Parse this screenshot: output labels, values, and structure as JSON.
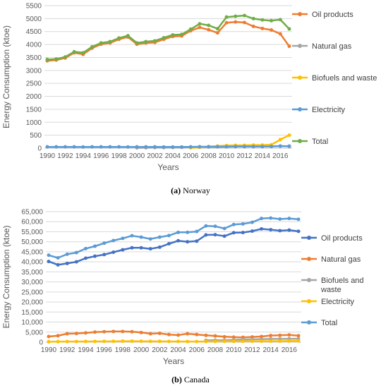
{
  "figure": {
    "caption_a_label": "(a)",
    "caption_a_text": "Norway",
    "caption_b_label": "(b)",
    "caption_b_text": "Canada"
  },
  "chart_data": [
    {
      "type": "line",
      "title": "",
      "xlabel": "Years",
      "ylabel": "Energy Consumption (ktoe)",
      "ylim": [
        0,
        5500
      ],
      "yticks": [
        0,
        500,
        1000,
        1500,
        2000,
        2500,
        3000,
        3500,
        4000,
        4500,
        5000,
        5500
      ],
      "ytick_labels": [
        "0",
        "500",
        "1000",
        "1500",
        "2000",
        "2500",
        "3000",
        "3500",
        "4000",
        "4500",
        "5000",
        "5500"
      ],
      "x": [
        1990,
        1991,
        1992,
        1993,
        1994,
        1995,
        1996,
        1997,
        1998,
        1999,
        2000,
        2001,
        2002,
        2003,
        2004,
        2005,
        2006,
        2007,
        2008,
        2009,
        2010,
        2011,
        2012,
        2013,
        2014,
        2015,
        2016,
        2017
      ],
      "xtick_labels": [
        "1990",
        "1992",
        "1994",
        "1996",
        "1998",
        "2000",
        "2002",
        "2004",
        "2006",
        "2008",
        "2010",
        "2012",
        "2014",
        "2016"
      ],
      "grid": true,
      "legend_position": "right",
      "series": [
        {
          "name": "Oil products",
          "color": "#ED7D31",
          "values": [
            3370,
            3400,
            3480,
            3680,
            3620,
            3860,
            4010,
            4060,
            4200,
            4290,
            4010,
            4060,
            4080,
            4200,
            4310,
            4330,
            4530,
            4660,
            4570,
            4450,
            4840,
            4870,
            4850,
            4700,
            4620,
            4560,
            4410,
            3930
          ]
        },
        {
          "name": "Natural gas",
          "color": "#A5A5A5",
          "values": [
            null,
            null,
            null,
            null,
            null,
            null,
            null,
            null,
            null,
            null,
            10,
            15,
            20,
            20,
            25,
            30,
            35,
            40,
            45,
            50,
            55,
            60,
            60,
            65,
            70,
            75,
            80,
            80
          ]
        },
        {
          "name": "Biofuels and waste",
          "color": "#FFC000",
          "values": [
            null,
            null,
            null,
            null,
            null,
            null,
            null,
            null,
            null,
            null,
            null,
            null,
            null,
            null,
            null,
            null,
            10,
            30,
            60,
            80,
            100,
            110,
            110,
            120,
            120,
            130,
            330,
            500
          ]
        },
        {
          "name": "Electricity",
          "color": "#5B9BD5",
          "values": [
            50,
            50,
            50,
            50,
            45,
            50,
            50,
            50,
            50,
            45,
            50,
            50,
            50,
            45,
            45,
            45,
            50,
            55,
            55,
            55,
            55,
            60,
            60,
            60,
            60,
            65,
            80,
            70
          ]
        },
        {
          "name": "Total",
          "color": "#70AD47",
          "values": [
            3420,
            3440,
            3520,
            3720,
            3680,
            3910,
            4060,
            4110,
            4250,
            4340,
            4060,
            4110,
            4140,
            4260,
            4370,
            4390,
            4590,
            4800,
            4740,
            4610,
            5060,
            5090,
            5120,
            5000,
            4950,
            4920,
            4960,
            4600
          ]
        }
      ]
    },
    {
      "type": "line",
      "title": "",
      "xlabel": "Years",
      "ylabel": "Energy Consumption (ktoe)",
      "ylim": [
        0,
        65000
      ],
      "yticks": [
        0,
        5000,
        10000,
        15000,
        20000,
        25000,
        30000,
        35000,
        40000,
        45000,
        50000,
        55000,
        60000,
        65000
      ],
      "ytick_labels": [
        "0",
        "5,000",
        "10,000",
        "15,000",
        "20,000",
        "25,000",
        "30,000",
        "35,000",
        "40,000",
        "45,000",
        "50,000",
        "55,000",
        "60,000",
        "65,000"
      ],
      "x": [
        1990,
        1991,
        1992,
        1993,
        1994,
        1995,
        1996,
        1997,
        1998,
        1999,
        2000,
        2001,
        2002,
        2003,
        2004,
        2005,
        2006,
        2007,
        2008,
        2009,
        2010,
        2011,
        2012,
        2013,
        2014,
        2015,
        2016,
        2017
      ],
      "xtick_labels": [
        "1990",
        "1992",
        "1994",
        "1996",
        "1998",
        "2000",
        "2002",
        "2004",
        "2006",
        "2008",
        "2010",
        "2012",
        "2014",
        "2016"
      ],
      "grid": true,
      "legend_position": "right",
      "series": [
        {
          "name": "Oil products",
          "color": "#4472C4",
          "values": [
            40200,
            38500,
            39200,
            40000,
            41800,
            42800,
            43600,
            44800,
            46000,
            47000,
            47000,
            46500,
            47300,
            49000,
            50500,
            50000,
            50300,
            53400,
            53500,
            52800,
            54500,
            54600,
            55300,
            56400,
            56000,
            55500,
            55800,
            55200
          ]
        },
        {
          "name": "Natural gas",
          "color": "#ED7D31",
          "values": [
            2800,
            3200,
            4200,
            4300,
            4600,
            5000,
            5200,
            5300,
            5300,
            5200,
            4800,
            4200,
            4400,
            3800,
            3500,
            4200,
            3800,
            3400,
            3100,
            2700,
            2500,
            2400,
            2600,
            2800,
            3300,
            3400,
            3600,
            3200
          ]
        },
        {
          "name": "Biofuels and\nwaste",
          "color": "#A5A5A5",
          "values": [
            null,
            null,
            null,
            null,
            null,
            null,
            null,
            null,
            null,
            null,
            null,
            null,
            null,
            null,
            null,
            null,
            null,
            900,
            1000,
            1000,
            1200,
            1300,
            1400,
            1500,
            1600,
            1600,
            1700,
            1700
          ]
        },
        {
          "name": "Electricity",
          "color": "#FFC000",
          "values": [
            200,
            250,
            300,
            300,
            350,
            350,
            400,
            400,
            500,
            500,
            450,
            400,
            400,
            350,
            350,
            300,
            300,
            300,
            350,
            400,
            400,
            450,
            450,
            500,
            500,
            500,
            550,
            600
          ]
        },
        {
          "name": "Total",
          "color": "#5B9BD5",
          "values": [
            43300,
            42000,
            43800,
            44600,
            46600,
            47800,
            49300,
            50600,
            51700,
            53000,
            52300,
            51400,
            52300,
            53100,
            54700,
            54700,
            55100,
            57900,
            57700,
            56600,
            58600,
            58900,
            59700,
            61600,
            61800,
            61300,
            61600,
            61200
          ]
        }
      ]
    }
  ]
}
